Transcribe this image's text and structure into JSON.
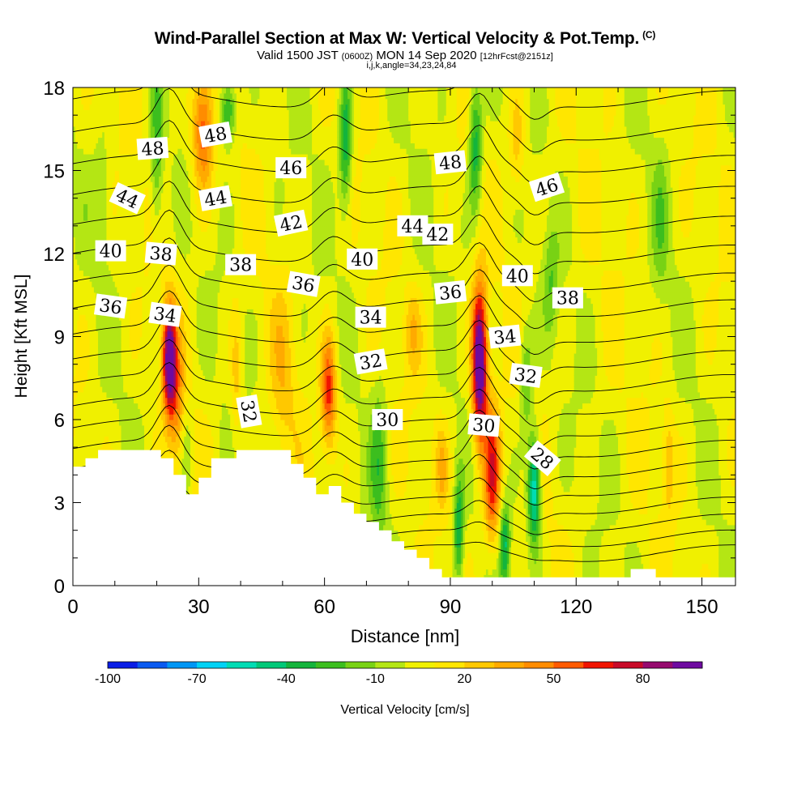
{
  "header": {
    "title": "Wind-Parallel Section at Max W: Vertical Velocity & Pot.Temp.",
    "title_tag": "(C)",
    "valid_prefix": "Valid 1500 JST",
    "valid_zulu": "(0600Z)",
    "valid_date": "MON 14 Sep 2020",
    "forecast": "[12hrFcst@2151z]",
    "indices": "i,j,k,angle=34,23,24,84"
  },
  "chart_data": {
    "type": "heatmap",
    "title": "Wind-Parallel Section at Max W: Vertical Velocity & Pot.Temp.",
    "xlabel": "Distance [nm]",
    "ylabel": "Height [Kft MSL]",
    "xlim": [
      0,
      158
    ],
    "ylim": [
      0,
      18
    ],
    "x_ticks": [
      0,
      30,
      60,
      90,
      120,
      150
    ],
    "y_ticks": [
      0,
      3,
      6,
      9,
      12,
      15,
      18
    ],
    "colorbar": {
      "label": "Vertical Velocity [cm/s]",
      "tick_values": [
        -100,
        -70,
        -40,
        -10,
        20,
        50,
        80
      ],
      "tick_labels": [
        "-100",
        "-70",
        "-40",
        "-10",
        "20",
        "50",
        "80"
      ],
      "range": [
        -100,
        100
      ],
      "colors": [
        "#0a1ee6",
        "#0a5af0",
        "#0096f5",
        "#00d2f5",
        "#00dcb4",
        "#00c878",
        "#14b43c",
        "#3cbe1e",
        "#78d214",
        "#b4e614",
        "#f0f000",
        "#ffe600",
        "#ffc800",
        "#ffaa00",
        "#ff8c00",
        "#ff5a00",
        "#f01400",
        "#c80a28",
        "#960a6e",
        "#6e0aa0"
      ]
    },
    "background_value": 5,
    "updrafts": [
      {
        "x": 23,
        "y": 8.2,
        "sx": 1.6,
        "sy": 1.9,
        "w": 100
      },
      {
        "x": 25,
        "y": 6.5,
        "sx": 2.2,
        "sy": 2.5,
        "w": 30
      },
      {
        "x": 31,
        "y": 16.5,
        "sx": 2.5,
        "sy": 2.2,
        "w": 55
      },
      {
        "x": 61,
        "y": 7.0,
        "sx": 1.8,
        "sy": 2.0,
        "w": 60
      },
      {
        "x": 97,
        "y": 8.0,
        "sx": 1.8,
        "sy": 2.8,
        "w": 110
      },
      {
        "x": 100,
        "y": 4.0,
        "sx": 2.0,
        "sy": 2.5,
        "w": 65
      },
      {
        "x": 39,
        "y": 7.5,
        "sx": 1.4,
        "sy": 2.5,
        "w": 22
      },
      {
        "x": 50,
        "y": 7.5,
        "sx": 3.0,
        "sy": 3.0,
        "w": 18
      },
      {
        "x": 81,
        "y": 9.2,
        "sx": 2.0,
        "sy": 1.5,
        "w": 20
      },
      {
        "x": 88,
        "y": 4.3,
        "sx": 1.5,
        "sy": 1.5,
        "w": 20
      },
      {
        "x": 142,
        "y": 4.5,
        "sx": 1.5,
        "sy": 2.0,
        "w": 22
      },
      {
        "x": 106,
        "y": 16.0,
        "sx": 2.0,
        "sy": 2.0,
        "w": 22
      }
    ],
    "downdrafts": [
      {
        "x": 20,
        "y": 15.5,
        "sx": 1.5,
        "sy": 3.0,
        "w": -30
      },
      {
        "x": 37,
        "y": 17.2,
        "sx": 2.0,
        "sy": 1.2,
        "w": -45
      },
      {
        "x": 65,
        "y": 16.0,
        "sx": 1.5,
        "sy": 2.5,
        "w": -45
      },
      {
        "x": 96,
        "y": 16.0,
        "sx": 1.6,
        "sy": 2.5,
        "w": -45
      },
      {
        "x": 110,
        "y": 3.5,
        "sx": 1.5,
        "sy": 2.0,
        "w": -70
      },
      {
        "x": 108,
        "y": 7.5,
        "sx": 1.5,
        "sy": 2.0,
        "w": -30
      },
      {
        "x": 92,
        "y": 2.0,
        "sx": 1.2,
        "sy": 2.0,
        "w": -45
      },
      {
        "x": 103,
        "y": 1.5,
        "sx": 1.2,
        "sy": 1.5,
        "w": -45
      },
      {
        "x": 73,
        "y": 4.5,
        "sx": 2.0,
        "sy": 3.0,
        "w": -25
      },
      {
        "x": 27,
        "y": 5.0,
        "sx": 1.3,
        "sy": 2.0,
        "w": -20
      },
      {
        "x": 7,
        "y": 14.0,
        "sx": 2.0,
        "sy": 2.0,
        "w": -15
      },
      {
        "x": 140,
        "y": 13.0,
        "sx": 2.0,
        "sy": 3.0,
        "w": -15
      },
      {
        "x": 114,
        "y": 11.0,
        "sx": 1.8,
        "sy": 2.0,
        "w": -20
      }
    ],
    "terrain": [
      [
        0,
        4.3
      ],
      [
        3,
        4.3
      ],
      [
        3,
        4.6
      ],
      [
        6,
        4.6
      ],
      [
        6,
        4.9
      ],
      [
        21,
        4.9
      ],
      [
        21,
        4.6
      ],
      [
        24,
        4.6
      ],
      [
        24,
        4.0
      ],
      [
        27,
        4.0
      ],
      [
        27,
        3.3
      ],
      [
        30,
        3.3
      ],
      [
        30,
        3.9
      ],
      [
        33,
        3.9
      ],
      [
        33,
        4.6
      ],
      [
        39,
        4.6
      ],
      [
        39,
        4.9
      ],
      [
        52,
        4.9
      ],
      [
        52,
        4.4
      ],
      [
        55,
        4.4
      ],
      [
        55,
        3.9
      ],
      [
        58,
        3.9
      ],
      [
        58,
        3.3
      ],
      [
        61,
        3.3
      ],
      [
        61,
        3.6
      ],
      [
        64,
        3.6
      ],
      [
        64,
        3.0
      ],
      [
        67,
        3.0
      ],
      [
        67,
        2.6
      ],
      [
        70,
        2.6
      ],
      [
        70,
        2.3
      ],
      [
        73,
        2.3
      ],
      [
        73,
        2.0
      ],
      [
        76,
        2.0
      ],
      [
        76,
        1.6
      ],
      [
        79,
        1.6
      ],
      [
        79,
        1.3
      ],
      [
        82,
        1.3
      ],
      [
        82,
        1.0
      ],
      [
        85,
        1.0
      ],
      [
        85,
        0.6
      ],
      [
        88,
        0.6
      ],
      [
        88,
        0.3
      ],
      [
        133,
        0.3
      ],
      [
        133,
        0.6
      ],
      [
        139,
        0.6
      ],
      [
        139,
        0.3
      ],
      [
        158,
        0.3
      ]
    ],
    "isentrope_levels": [
      28,
      29,
      30,
      31,
      32,
      33,
      34,
      35,
      36,
      37,
      38,
      39,
      40,
      41,
      42,
      43,
      44,
      45,
      46,
      47,
      48,
      49,
      50
    ],
    "isentrope_labels": [
      {
        "text": "48",
        "x": 19,
        "y": 15.8,
        "angle": 4
      },
      {
        "text": "48",
        "x": 34,
        "y": 16.3,
        "angle": 10
      },
      {
        "text": "48",
        "x": 90,
        "y": 15.3,
        "angle": 6
      },
      {
        "text": "46",
        "x": 52,
        "y": 15.1,
        "angle": 0
      },
      {
        "text": "46",
        "x": 113,
        "y": 14.4,
        "angle": 18
      },
      {
        "text": "44",
        "x": 13,
        "y": 14.0,
        "angle": -25
      },
      {
        "text": "44",
        "x": 34,
        "y": 14.0,
        "angle": 10
      },
      {
        "text": "44",
        "x": 81,
        "y": 13.0,
        "angle": 0
      },
      {
        "text": "42",
        "x": 52,
        "y": 13.1,
        "angle": 12
      },
      {
        "text": "42",
        "x": 87,
        "y": 12.7,
        "angle": 0
      },
      {
        "text": "40",
        "x": 9,
        "y": 12.1,
        "angle": 0
      },
      {
        "text": "40",
        "x": 69,
        "y": 11.8,
        "angle": 0
      },
      {
        "text": "40",
        "x": 106,
        "y": 11.2,
        "angle": 0
      },
      {
        "text": "38",
        "x": 21,
        "y": 12.0,
        "angle": -5
      },
      {
        "text": "38",
        "x": 40,
        "y": 11.6,
        "angle": 0
      },
      {
        "text": "38",
        "x": 118,
        "y": 10.4,
        "angle": 0
      },
      {
        "text": "36",
        "x": 9,
        "y": 10.1,
        "angle": -8
      },
      {
        "text": "36",
        "x": 55,
        "y": 10.9,
        "angle": -10
      },
      {
        "text": "36",
        "x": 90,
        "y": 10.6,
        "angle": 6
      },
      {
        "text": "34",
        "x": 22,
        "y": 9.8,
        "angle": -8
      },
      {
        "text": "34",
        "x": 71,
        "y": 9.7,
        "angle": 0
      },
      {
        "text": "34",
        "x": 103,
        "y": 9.0,
        "angle": 6
      },
      {
        "text": "32",
        "x": 42,
        "y": 6.3,
        "angle": -80
      },
      {
        "text": "32",
        "x": 71,
        "y": 8.1,
        "angle": 10
      },
      {
        "text": "32",
        "x": 108,
        "y": 7.6,
        "angle": -8
      },
      {
        "text": "30",
        "x": 75,
        "y": 6.0,
        "angle": 0
      },
      {
        "text": "30",
        "x": 98,
        "y": 5.8,
        "angle": -5
      },
      {
        "text": "28",
        "x": 112,
        "y": 4.6,
        "angle": -40
      }
    ]
  }
}
